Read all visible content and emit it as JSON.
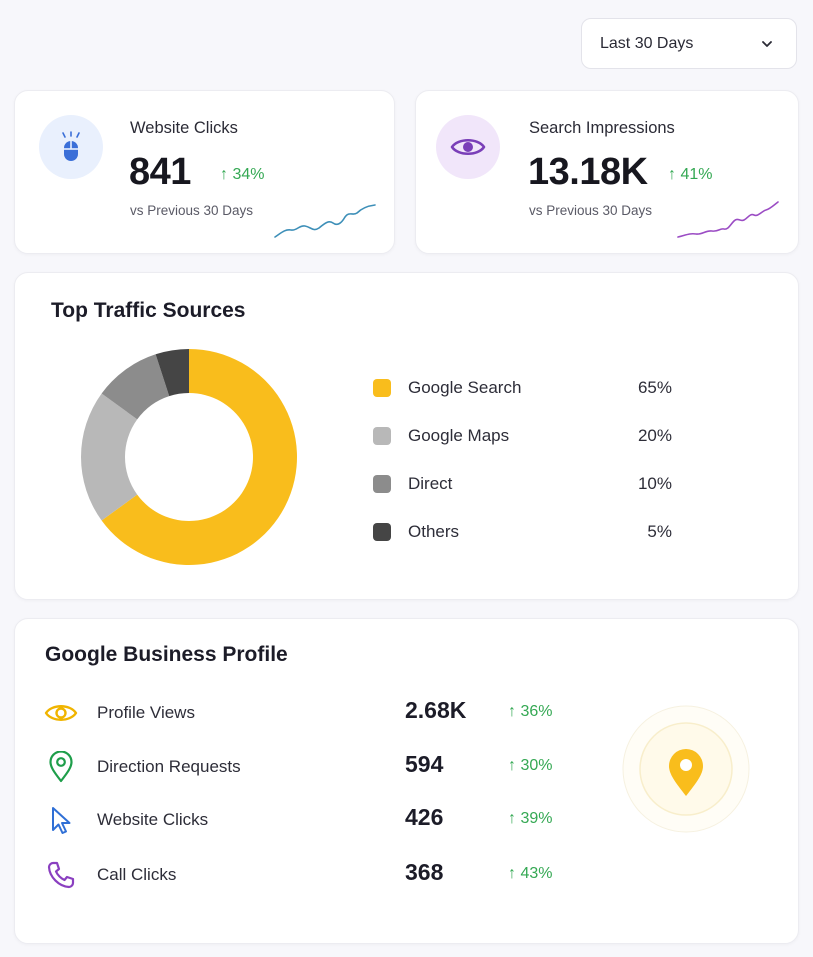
{
  "filter": {
    "selected": "Last 30 Days",
    "icon": "chevron-down-icon"
  },
  "metrics": [
    {
      "title": "Website Clicks",
      "value": "841",
      "change": "↑ 34%",
      "sub": "vs Previous 30 Days",
      "icon": "mouse-icon",
      "accent": "#3b6fd8",
      "spark_color": "#3d8fb8"
    },
    {
      "title": "Search Impressions",
      "value": "13.18K",
      "change": "↑ 41%",
      "sub": "vs Previous 30 Days",
      "icon": "eye-icon",
      "accent": "#7a3fb8",
      "spark_color": "#9b4cc4"
    }
  ],
  "traffic": {
    "title": "Top Traffic Sources",
    "items": [
      {
        "label": "Google Search",
        "pct": "65%",
        "value": 65,
        "color": "#f9bd1c"
      },
      {
        "label": "Google Maps",
        "pct": "20%",
        "value": 20,
        "color": "#b8b8b8"
      },
      {
        "label": "Direct",
        "pct": "10%",
        "value": 10,
        "color": "#8c8c8c"
      },
      {
        "label": "Others",
        "pct": "5%",
        "value": 5,
        "color": "#454545"
      }
    ]
  },
  "profile": {
    "title": "Google Business Profile",
    "rows": [
      {
        "label": "Profile Views",
        "value": "2.68K",
        "change": "↑ 36%",
        "icon": "eye-icon",
        "color": "#f0b400"
      },
      {
        "label": "Direction Requests",
        "value": "594",
        "change": "↑ 30%",
        "icon": "location-pin-icon",
        "color": "#1e9e4a"
      },
      {
        "label": "Website Clicks",
        "value": "426",
        "change": "↑ 39%",
        "icon": "cursor-icon",
        "color": "#2f6fd6"
      },
      {
        "label": "Call Clicks",
        "value": "368",
        "change": "↑ 43%",
        "icon": "phone-icon",
        "color": "#8a3fc0"
      }
    ],
    "badge_icon": "map-pin-icon",
    "badge_color": "#f9bd1c"
  },
  "colors": {
    "positive": "#34a853"
  }
}
